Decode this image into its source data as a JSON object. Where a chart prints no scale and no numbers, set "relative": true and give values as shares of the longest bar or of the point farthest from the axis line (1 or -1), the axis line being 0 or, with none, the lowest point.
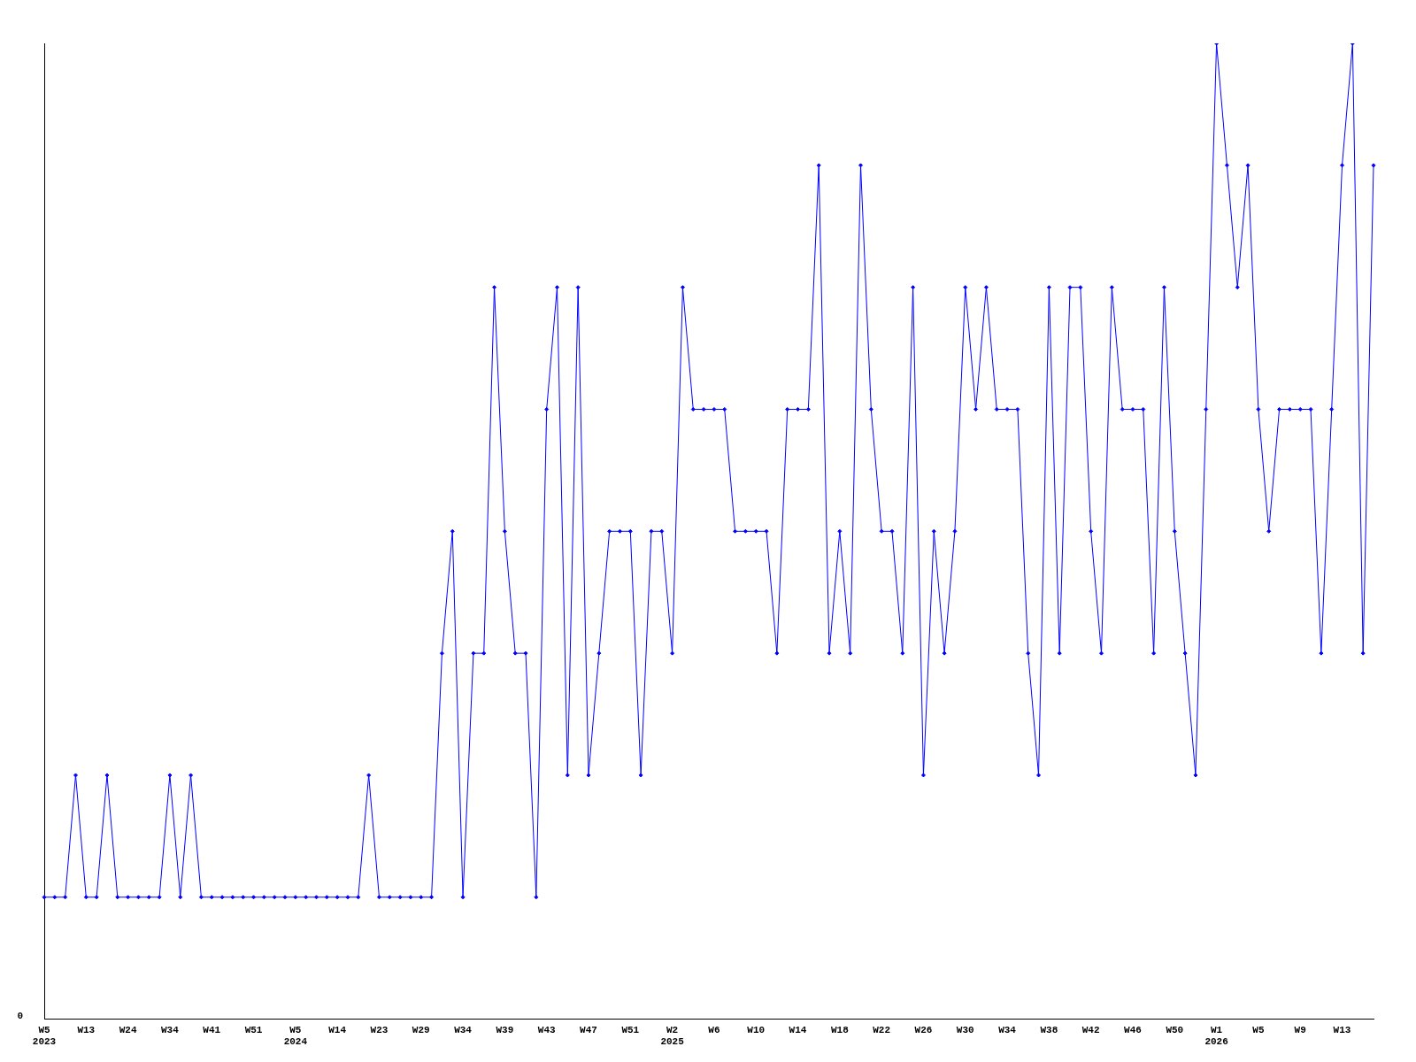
{
  "chart_data": {
    "type": "line",
    "relative": true,
    "categories": [
      "W5\n2023",
      null,
      null,
      null,
      "W13",
      null,
      null,
      null,
      "W24",
      null,
      null,
      null,
      "W34",
      null,
      null,
      null,
      "W41",
      null,
      null,
      null,
      "W51",
      null,
      null,
      null,
      "W5\n2024",
      null,
      null,
      null,
      "W14",
      null,
      null,
      null,
      "W23",
      null,
      null,
      null,
      "W29",
      null,
      null,
      null,
      "W34",
      null,
      null,
      null,
      "W39",
      null,
      null,
      null,
      "W43",
      null,
      null,
      null,
      "W47",
      null,
      null,
      null,
      "W51",
      null,
      null,
      null,
      "W2\n2025",
      null,
      null,
      null,
      "W6",
      null,
      null,
      null,
      "W10",
      null,
      null,
      null,
      "W14",
      null,
      null,
      null,
      "W18",
      null,
      null,
      null,
      "W22",
      null,
      null,
      null,
      "W26",
      null,
      null,
      null,
      "W30",
      null,
      null,
      null,
      "W34",
      null,
      null,
      null,
      "W38",
      null,
      null,
      null,
      "W42",
      null,
      null,
      null,
      "W46",
      null,
      null,
      null,
      "W50",
      null,
      null,
      null,
      "W1\n2026",
      null,
      null,
      null,
      "W5",
      null,
      null,
      null,
      "W9",
      null,
      null,
      null,
      "W13",
      null,
      null,
      null
    ],
    "series": [
      {
        "color": "#0000ff",
        "values": [
          0.125,
          0.125,
          0.125,
          0.25,
          0.125,
          0.125,
          0.25,
          0.125,
          0.125,
          0.125,
          0.125,
          0.125,
          0.25,
          0.125,
          0.25,
          0.125,
          0.125,
          0.125,
          0.125,
          0.125,
          0.125,
          0.125,
          0.125,
          0.125,
          0.125,
          0.125,
          0.125,
          0.125,
          0.125,
          0.125,
          0.125,
          0.25,
          0.125,
          0.125,
          0.125,
          0.125,
          0.125,
          0.125,
          0.375,
          0.5,
          0.125,
          0.375,
          0.375,
          0.75,
          0.5,
          0.375,
          0.375,
          0.125,
          0.625,
          0.75,
          0.25,
          0.75,
          0.25,
          0.375,
          0.5,
          0.5,
          0.5,
          0.25,
          0.5,
          0.5,
          0.375,
          0.75,
          0.625,
          0.625,
          0.625,
          0.625,
          0.5,
          0.5,
          0.5,
          0.5,
          0.375,
          0.625,
          0.625,
          0.625,
          0.875,
          0.375,
          0.5,
          0.375,
          0.875,
          0.625,
          0.5,
          0.5,
          0.375,
          0.75,
          0.25,
          0.5,
          0.375,
          0.5,
          0.75,
          0.625,
          0.75,
          0.625,
          0.625,
          0.625,
          0.375,
          0.25,
          0.75,
          0.375,
          0.75,
          0.75,
          0.5,
          0.375,
          0.75,
          0.625,
          0.625,
          0.625,
          0.375,
          0.75,
          0.5,
          0.375,
          0.25,
          0.625,
          1,
          0.875,
          0.75,
          0.875,
          0.625,
          0.5,
          0.625,
          0.625,
          0.625,
          0.625,
          0.375,
          0.625,
          0.875,
          1,
          0.375,
          0.875
        ]
      }
    ],
    "annotations": [
      "0"
    ],
    "marker": "diamond",
    "line_style": "solid",
    "grid": false,
    "legend": false
  }
}
